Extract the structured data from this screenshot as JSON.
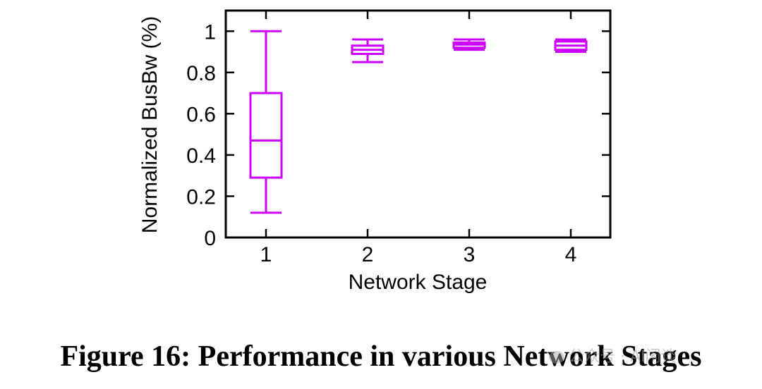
{
  "chart_data": {
    "type": "box",
    "xlabel": "Network Stage",
    "ylabel": "Normalized BusBw (%)",
    "categories": [
      "1",
      "2",
      "3",
      "4"
    ],
    "ylim": [
      0,
      1.1
    ],
    "yticks": [
      {
        "value": 0,
        "label": "0"
      },
      {
        "value": 0.2,
        "label": "0.2"
      },
      {
        "value": 0.4,
        "label": "0.4"
      },
      {
        "value": 0.6,
        "label": "0.6"
      },
      {
        "value": 0.8,
        "label": "0.8"
      },
      {
        "value": 1,
        "label": "1"
      }
    ],
    "boxes": [
      {
        "category": "1",
        "min": 0.12,
        "q1": 0.29,
        "median": 0.47,
        "q3": 0.7,
        "max": 1.0
      },
      {
        "category": "2",
        "min": 0.85,
        "q1": 0.89,
        "median": 0.91,
        "q3": 0.93,
        "max": 0.96
      },
      {
        "category": "3",
        "min": 0.91,
        "q1": 0.92,
        "median": 0.935,
        "q3": 0.945,
        "max": 0.96
      },
      {
        "category": "4",
        "min": 0.9,
        "q1": 0.91,
        "median": 0.93,
        "q3": 0.95,
        "max": 0.96
      }
    ],
    "color": "#cc00ff",
    "grid": false
  },
  "caption": "Figure 16: Performance in various Network Stages",
  "watermark": "公众号 · AI闲谈"
}
